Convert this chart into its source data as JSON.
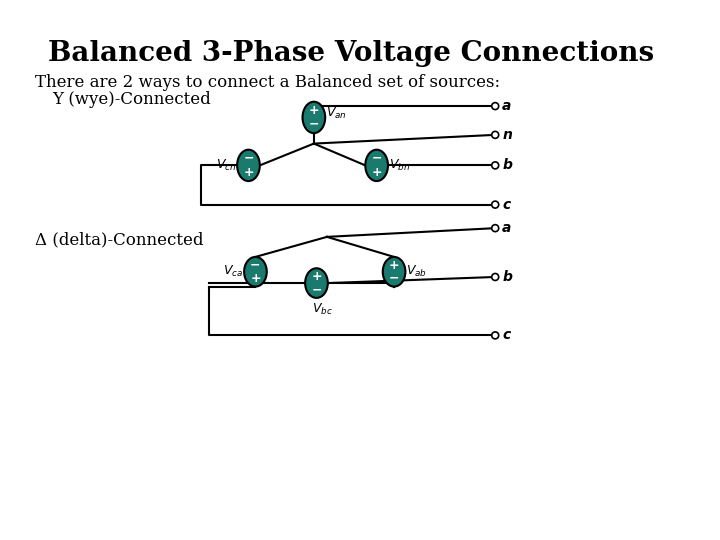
{
  "title": "Balanced 3-Phase Voltage Connections",
  "subtitle": "There are 2 ways to connect a Balanced set of sources:",
  "wye_label": "Y (wye)-Connected",
  "delta_label": "Δ (delta)-Connected",
  "bg_color": "#ffffff",
  "teal_color": "#1a7a6e",
  "line_color": "#000000",
  "title_fontsize": 20,
  "body_fontsize": 12,
  "label_fontsize": 10
}
